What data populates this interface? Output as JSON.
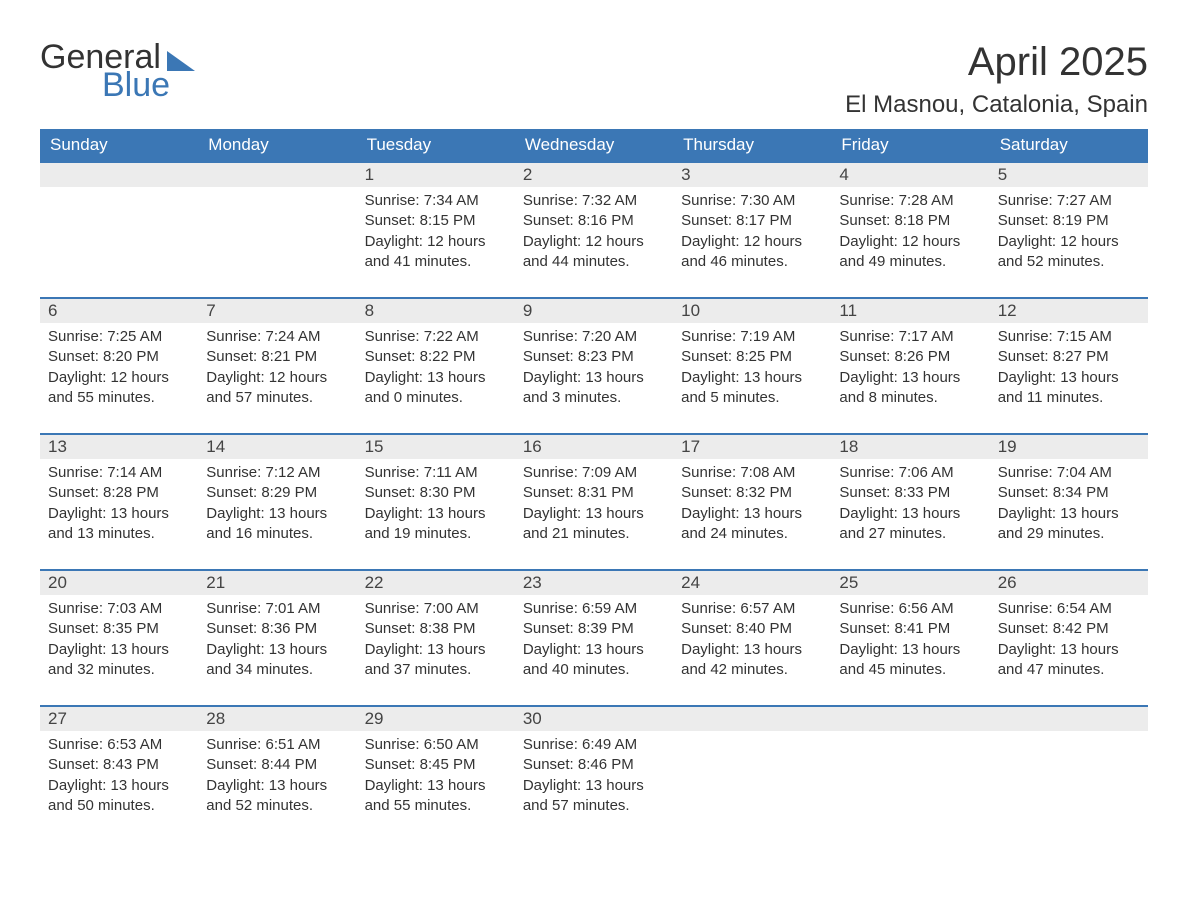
{
  "logo": {
    "line1": "General",
    "line2": "Blue"
  },
  "title": "April 2025",
  "location": "El Masnou, Catalonia, Spain",
  "colors": {
    "header_bg": "#3b77b5",
    "header_text": "#ffffff",
    "daynum_bg": "#ececec",
    "week_border": "#3b77b5",
    "text": "#333333",
    "page_bg": "#ffffff"
  },
  "days_of_week": [
    "Sunday",
    "Monday",
    "Tuesday",
    "Wednesday",
    "Thursday",
    "Friday",
    "Saturday"
  ],
  "weeks": [
    [
      null,
      null,
      {
        "n": "1",
        "sunrise": "7:34 AM",
        "sunset": "8:15 PM",
        "dl": "12 hours and 41 minutes."
      },
      {
        "n": "2",
        "sunrise": "7:32 AM",
        "sunset": "8:16 PM",
        "dl": "12 hours and 44 minutes."
      },
      {
        "n": "3",
        "sunrise": "7:30 AM",
        "sunset": "8:17 PM",
        "dl": "12 hours and 46 minutes."
      },
      {
        "n": "4",
        "sunrise": "7:28 AM",
        "sunset": "8:18 PM",
        "dl": "12 hours and 49 minutes."
      },
      {
        "n": "5",
        "sunrise": "7:27 AM",
        "sunset": "8:19 PM",
        "dl": "12 hours and 52 minutes."
      }
    ],
    [
      {
        "n": "6",
        "sunrise": "7:25 AM",
        "sunset": "8:20 PM",
        "dl": "12 hours and 55 minutes."
      },
      {
        "n": "7",
        "sunrise": "7:24 AM",
        "sunset": "8:21 PM",
        "dl": "12 hours and 57 minutes."
      },
      {
        "n": "8",
        "sunrise": "7:22 AM",
        "sunset": "8:22 PM",
        "dl": "13 hours and 0 minutes."
      },
      {
        "n": "9",
        "sunrise": "7:20 AM",
        "sunset": "8:23 PM",
        "dl": "13 hours and 3 minutes."
      },
      {
        "n": "10",
        "sunrise": "7:19 AM",
        "sunset": "8:25 PM",
        "dl": "13 hours and 5 minutes."
      },
      {
        "n": "11",
        "sunrise": "7:17 AM",
        "sunset": "8:26 PM",
        "dl": "13 hours and 8 minutes."
      },
      {
        "n": "12",
        "sunrise": "7:15 AM",
        "sunset": "8:27 PM",
        "dl": "13 hours and 11 minutes."
      }
    ],
    [
      {
        "n": "13",
        "sunrise": "7:14 AM",
        "sunset": "8:28 PM",
        "dl": "13 hours and 13 minutes."
      },
      {
        "n": "14",
        "sunrise": "7:12 AM",
        "sunset": "8:29 PM",
        "dl": "13 hours and 16 minutes."
      },
      {
        "n": "15",
        "sunrise": "7:11 AM",
        "sunset": "8:30 PM",
        "dl": "13 hours and 19 minutes."
      },
      {
        "n": "16",
        "sunrise": "7:09 AM",
        "sunset": "8:31 PM",
        "dl": "13 hours and 21 minutes."
      },
      {
        "n": "17",
        "sunrise": "7:08 AM",
        "sunset": "8:32 PM",
        "dl": "13 hours and 24 minutes."
      },
      {
        "n": "18",
        "sunrise": "7:06 AM",
        "sunset": "8:33 PM",
        "dl": "13 hours and 27 minutes."
      },
      {
        "n": "19",
        "sunrise": "7:04 AM",
        "sunset": "8:34 PM",
        "dl": "13 hours and 29 minutes."
      }
    ],
    [
      {
        "n": "20",
        "sunrise": "7:03 AM",
        "sunset": "8:35 PM",
        "dl": "13 hours and 32 minutes."
      },
      {
        "n": "21",
        "sunrise": "7:01 AM",
        "sunset": "8:36 PM",
        "dl": "13 hours and 34 minutes."
      },
      {
        "n": "22",
        "sunrise": "7:00 AM",
        "sunset": "8:38 PM",
        "dl": "13 hours and 37 minutes."
      },
      {
        "n": "23",
        "sunrise": "6:59 AM",
        "sunset": "8:39 PM",
        "dl": "13 hours and 40 minutes."
      },
      {
        "n": "24",
        "sunrise": "6:57 AM",
        "sunset": "8:40 PM",
        "dl": "13 hours and 42 minutes."
      },
      {
        "n": "25",
        "sunrise": "6:56 AM",
        "sunset": "8:41 PM",
        "dl": "13 hours and 45 minutes."
      },
      {
        "n": "26",
        "sunrise": "6:54 AM",
        "sunset": "8:42 PM",
        "dl": "13 hours and 47 minutes."
      }
    ],
    [
      {
        "n": "27",
        "sunrise": "6:53 AM",
        "sunset": "8:43 PM",
        "dl": "13 hours and 50 minutes."
      },
      {
        "n": "28",
        "sunrise": "6:51 AM",
        "sunset": "8:44 PM",
        "dl": "13 hours and 52 minutes."
      },
      {
        "n": "29",
        "sunrise": "6:50 AM",
        "sunset": "8:45 PM",
        "dl": "13 hours and 55 minutes."
      },
      {
        "n": "30",
        "sunrise": "6:49 AM",
        "sunset": "8:46 PM",
        "dl": "13 hours and 57 minutes."
      },
      null,
      null,
      null
    ]
  ],
  "labels": {
    "sunrise": "Sunrise: ",
    "sunset": "Sunset: ",
    "daylight": "Daylight: "
  }
}
